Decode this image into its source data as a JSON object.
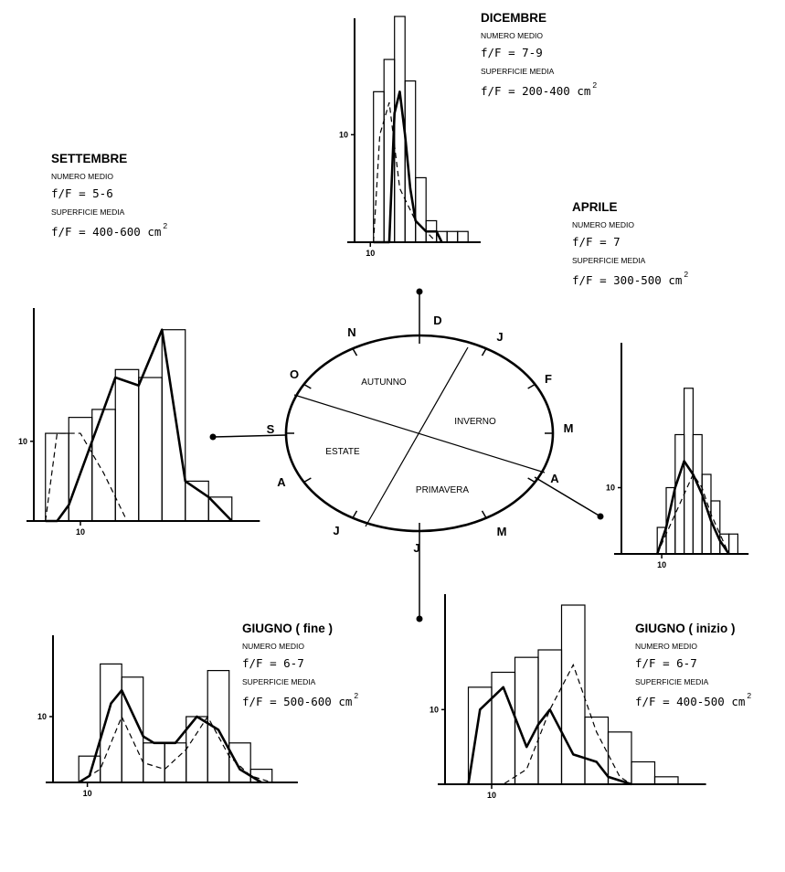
{
  "wheel": {
    "months": [
      "D",
      "J",
      "F",
      "M",
      "A",
      "M",
      "J",
      "J",
      "A",
      "S",
      "O",
      "N"
    ],
    "seasons": [
      "AUTUNNO",
      "INVERNO",
      "ESTATE",
      "PRIMAVERA"
    ]
  },
  "panels": [
    {
      "id": "dicembre",
      "title": "DICEMBRE",
      "num_label": "NUMERO MEDIO",
      "num_value": "f/F = 7-9",
      "sup_label": "SUPERFICIE MEDIA",
      "sup_value": "f/F = 200-400 cm",
      "sup_exp": "2"
    },
    {
      "id": "settembre",
      "title": "SETTEMBRE",
      "num_label": "NUMERO MEDIO",
      "num_value": "f/F = 5-6",
      "sup_label": "SUPERFICIE MEDIA",
      "sup_value": "f/F = 400-600 cm",
      "sup_exp": "2"
    },
    {
      "id": "aprile",
      "title": "APRILE",
      "num_label": "NUMERO MEDIO",
      "num_value": "f/F = 7",
      "sup_label": "SUPERFICIE MEDIA",
      "sup_value": "f/F = 300-500 cm",
      "sup_exp": "2"
    },
    {
      "id": "giugno_fine",
      "title": "GIUGNO ( fine )",
      "num_label": "NUMERO MEDIO",
      "num_value": "f/F = 6-7",
      "sup_label": "SUPERFICIE MEDIA",
      "sup_value": "f/F = 500-600 cm",
      "sup_exp": "2"
    },
    {
      "id": "giugno_inizio",
      "title": "GIUGNO ( inizio )",
      "num_label": "NUMERO MEDIO",
      "num_value": "f/F = 6-7",
      "sup_label": "SUPERFICIE MEDIA",
      "sup_value": "f/F = 400-500 cm",
      "sup_exp": "2"
    }
  ],
  "chart_data": [
    {
      "id": "dicembre",
      "type": "bar",
      "xtick": "10",
      "ytick": "10",
      "ylim": [
        0,
        21
      ],
      "bars": [
        14,
        17,
        21,
        15,
        6,
        2,
        1,
        1,
        1
      ],
      "solid": [
        [
          0,
          0
        ],
        [
          1.5,
          0
        ],
        [
          2,
          12
        ],
        [
          2.5,
          14
        ],
        [
          3,
          10
        ],
        [
          3.5,
          5
        ],
        [
          4,
          2
        ],
        [
          5,
          1
        ],
        [
          6,
          1
        ],
        [
          6.5,
          0
        ]
      ],
      "dashed": [
        [
          0,
          0
        ],
        [
          0.6,
          10
        ],
        [
          1.5,
          13
        ],
        [
          2.5,
          5
        ],
        [
          3,
          4
        ],
        [
          3.5,
          3
        ],
        [
          4,
          2
        ],
        [
          5,
          1
        ],
        [
          6,
          0
        ]
      ]
    },
    {
      "id": "settembre",
      "type": "bar",
      "xtick": "10",
      "ytick": "10",
      "ylim": [
        0,
        25
      ],
      "bars": [
        11,
        13,
        14,
        19,
        18,
        24,
        5,
        3
      ],
      "solid": [
        [
          0,
          0
        ],
        [
          0.5,
          0
        ],
        [
          1,
          2
        ],
        [
          2,
          10
        ],
        [
          3,
          18
        ],
        [
          4,
          17
        ],
        [
          5,
          24
        ],
        [
          6,
          5
        ],
        [
          7,
          3
        ],
        [
          8,
          0
        ]
      ],
      "dashed": [
        [
          0,
          0
        ],
        [
          0.5,
          11
        ],
        [
          1.5,
          11
        ],
        [
          2.5,
          6
        ],
        [
          3.5,
          0
        ]
      ]
    },
    {
      "id": "aprile",
      "type": "bar",
      "xtick": "10",
      "ytick": "10",
      "ylim": [
        0,
        28
      ],
      "bars": [
        4,
        10,
        18,
        25,
        18,
        12,
        8,
        3,
        3
      ],
      "solid": [
        [
          0,
          0
        ],
        [
          1,
          4
        ],
        [
          2,
          10
        ],
        [
          3,
          14
        ],
        [
          4,
          12
        ],
        [
          5,
          9
        ],
        [
          6,
          5
        ],
        [
          7,
          2
        ],
        [
          8,
          0
        ]
      ],
      "dashed": [
        [
          0,
          0
        ],
        [
          1,
          3
        ],
        [
          2,
          6
        ],
        [
          3,
          9
        ],
        [
          4,
          12
        ],
        [
          5,
          10
        ],
        [
          6,
          6
        ],
        [
          7,
          3
        ],
        [
          8,
          0
        ]
      ]
    },
    {
      "id": "giugno_fine",
      "type": "bar",
      "xtick": "10",
      "ytick": "10",
      "ylim": [
        0,
        20
      ],
      "bars": [
        4,
        18,
        16,
        6,
        6,
        10,
        17,
        6,
        2
      ],
      "solid": [
        [
          0,
          0
        ],
        [
          0.5,
          1
        ],
        [
          1.5,
          12
        ],
        [
          2,
          14
        ],
        [
          3,
          7
        ],
        [
          3.5,
          6
        ],
        [
          4.5,
          6
        ],
        [
          5.5,
          10
        ],
        [
          6.5,
          8
        ],
        [
          7.5,
          2
        ],
        [
          8.5,
          0
        ]
      ],
      "dashed": [
        [
          0,
          0
        ],
        [
          1,
          2
        ],
        [
          2,
          10
        ],
        [
          3,
          3
        ],
        [
          4,
          2
        ],
        [
          5,
          5
        ],
        [
          6,
          10
        ],
        [
          7,
          4
        ],
        [
          8,
          1
        ],
        [
          9,
          0
        ]
      ]
    },
    {
      "id": "giugno_inizio",
      "type": "bar",
      "xtick": "10",
      "ytick": "10",
      "ylim": [
        0,
        24
      ],
      "bars": [
        13,
        15,
        17,
        18,
        24,
        9,
        7,
        3,
        1
      ],
      "solid": [
        [
          0,
          0
        ],
        [
          0.5,
          10
        ],
        [
          1.5,
          13
        ],
        [
          2.5,
          5
        ],
        [
          3,
          8
        ],
        [
          3.5,
          10
        ],
        [
          4.5,
          4
        ],
        [
          5.5,
          3
        ],
        [
          6,
          1
        ],
        [
          7,
          0
        ]
      ],
      "dashed": [
        [
          0,
          0
        ],
        [
          1.5,
          0
        ],
        [
          2.5,
          2
        ],
        [
          3.5,
          10
        ],
        [
          4.5,
          16
        ],
        [
          5.5,
          7
        ],
        [
          6.5,
          1
        ],
        [
          7,
          0
        ]
      ]
    }
  ]
}
